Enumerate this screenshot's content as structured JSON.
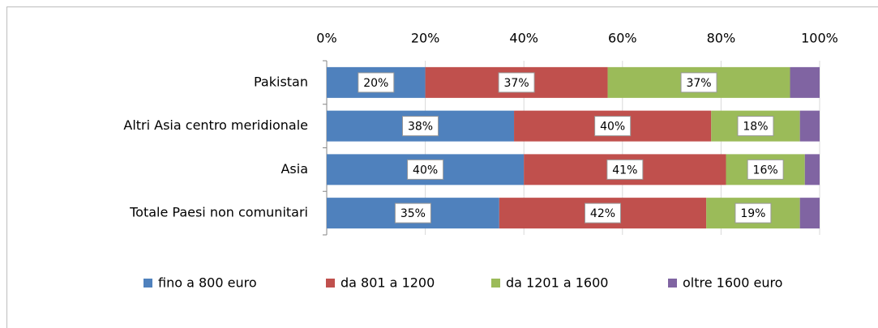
{
  "chart_data": {
    "type": "stacked_bar_horizontal",
    "categories": [
      "Pakistan",
      "Altri Asia centro meridionale",
      "Asia",
      "Totale Paesi non comunitari"
    ],
    "series": [
      {
        "name": "fino a 800 euro",
        "color": "#4f81bd",
        "values": [
          20,
          38,
          40,
          35
        ],
        "value_labels": [
          "20%",
          "38%",
          "40%",
          "35%"
        ]
      },
      {
        "name": "da 801 a 1200",
        "color": "#c0504d",
        "values": [
          37,
          40,
          41,
          42
        ],
        "value_labels": [
          "37%",
          "40%",
          "41%",
          "42%"
        ]
      },
      {
        "name": "da 1201 a 1600",
        "color": "#9bbb59",
        "values": [
          37,
          18,
          16,
          19
        ],
        "value_labels": [
          "37%",
          "18%",
          "16%",
          "19%"
        ]
      },
      {
        "name": "oltre 1600 euro",
        "color": "#8064a2",
        "values": [
          6,
          4,
          3,
          4
        ]
      }
    ],
    "xlim": [
      0,
      100
    ],
    "xticks": [
      {
        "value": 0,
        "label": "0%"
      },
      {
        "value": 20,
        "label": "20%"
      },
      {
        "value": 40,
        "label": "40%"
      },
      {
        "value": 60,
        "label": "60%"
      },
      {
        "value": 80,
        "label": "80%"
      },
      {
        "value": 100,
        "label": "100%"
      }
    ],
    "grid": true,
    "legend": "bottom"
  }
}
